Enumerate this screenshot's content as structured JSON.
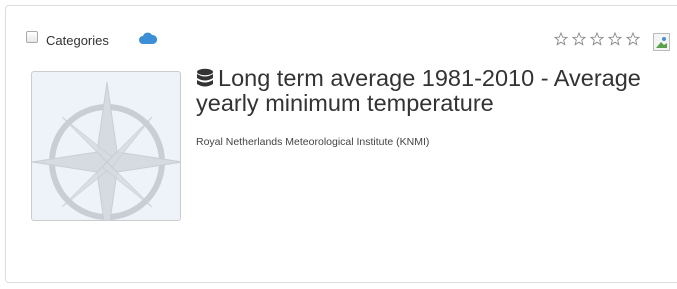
{
  "header": {
    "checkbox_label": "Categories"
  },
  "title": "Long term average 1981-2010 - Average yearly minimum temperature",
  "publisher": "Royal Netherlands Meteorological Institute (KNMI)"
}
